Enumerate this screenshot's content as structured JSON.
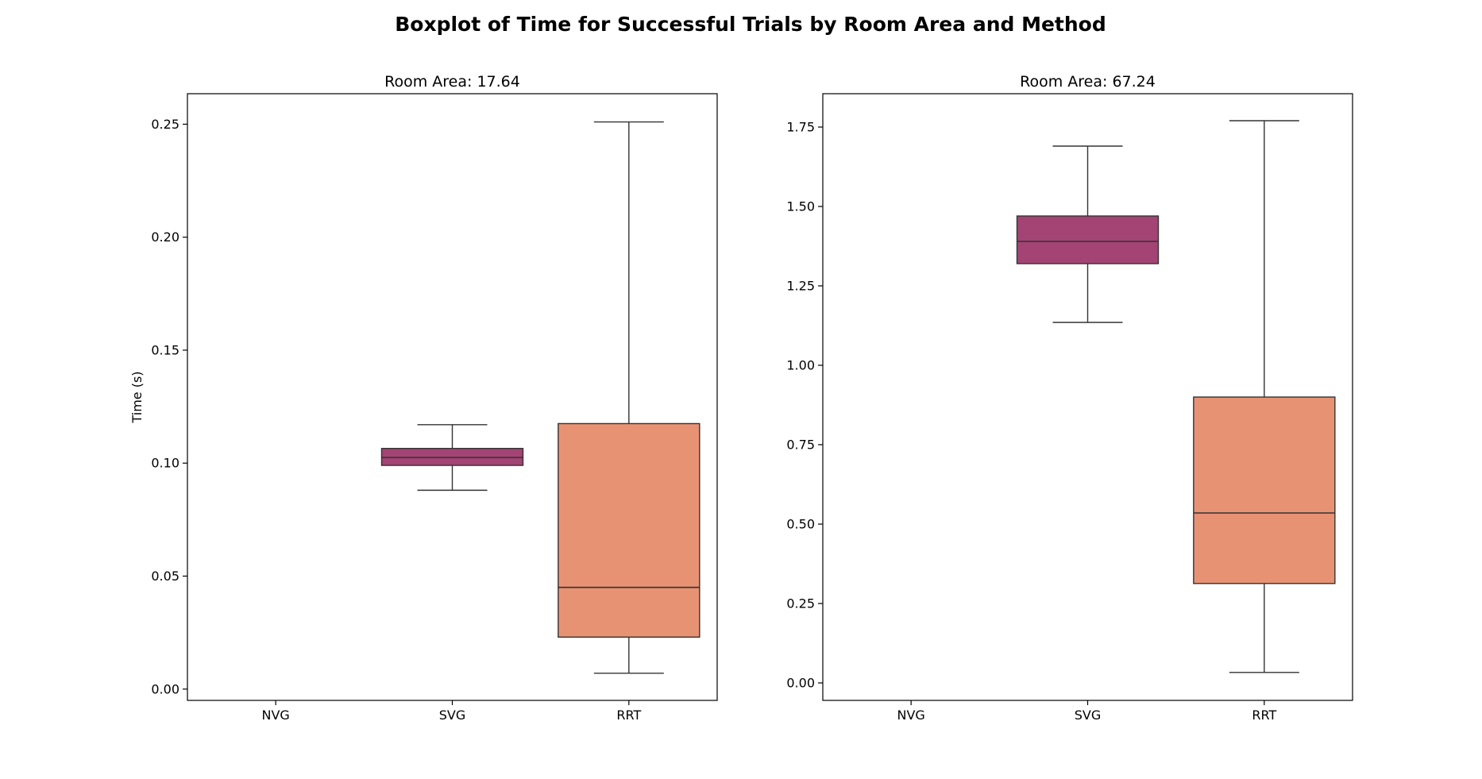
{
  "figure_title": "Boxplot of Time for Successful Trials by Room Area and Method",
  "ylabel": "Time (s)",
  "chart_data": [
    {
      "type": "box",
      "title": "Room Area: 17.64",
      "categories": [
        "NVG",
        "SVG",
        "RRT"
      ],
      "ylim": [
        -0.005,
        0.2635
      ],
      "yticks": [
        0.0,
        0.05,
        0.1,
        0.15,
        0.2,
        0.25
      ],
      "ytick_labels": [
        "0.00",
        "0.05",
        "0.10",
        "0.15",
        "0.20",
        "0.25"
      ],
      "grid": false,
      "boxes": [
        {
          "category": "NVG",
          "empty": true
        },
        {
          "category": "SVG",
          "color": "#a34474",
          "whisker_low": 0.088,
          "q1": 0.099,
          "median": 0.1025,
          "q3": 0.1065,
          "whisker_high": 0.117
        },
        {
          "category": "RRT",
          "color": "#e89274",
          "whisker_low": 0.007,
          "q1": 0.023,
          "median": 0.045,
          "q3": 0.1175,
          "whisker_high": 0.251
        }
      ]
    },
    {
      "type": "box",
      "title": "Room Area: 67.24",
      "categories": [
        "NVG",
        "SVG",
        "RRT"
      ],
      "ylim": [
        -0.055,
        1.855
      ],
      "yticks": [
        0.0,
        0.25,
        0.5,
        0.75,
        1.0,
        1.25,
        1.5,
        1.75
      ],
      "ytick_labels": [
        "0.00",
        "0.25",
        "0.50",
        "0.75",
        "1.00",
        "1.25",
        "1.50",
        "1.75"
      ],
      "grid": false,
      "boxes": [
        {
          "category": "NVG",
          "empty": true
        },
        {
          "category": "SVG",
          "color": "#a34474",
          "whisker_low": 1.135,
          "q1": 1.32,
          "median": 1.39,
          "q3": 1.47,
          "whisker_high": 1.69
        },
        {
          "category": "RRT",
          "color": "#e89274",
          "whisker_low": 0.033,
          "q1": 0.313,
          "median": 0.535,
          "q3": 0.9,
          "whisker_high": 1.77
        }
      ]
    }
  ]
}
